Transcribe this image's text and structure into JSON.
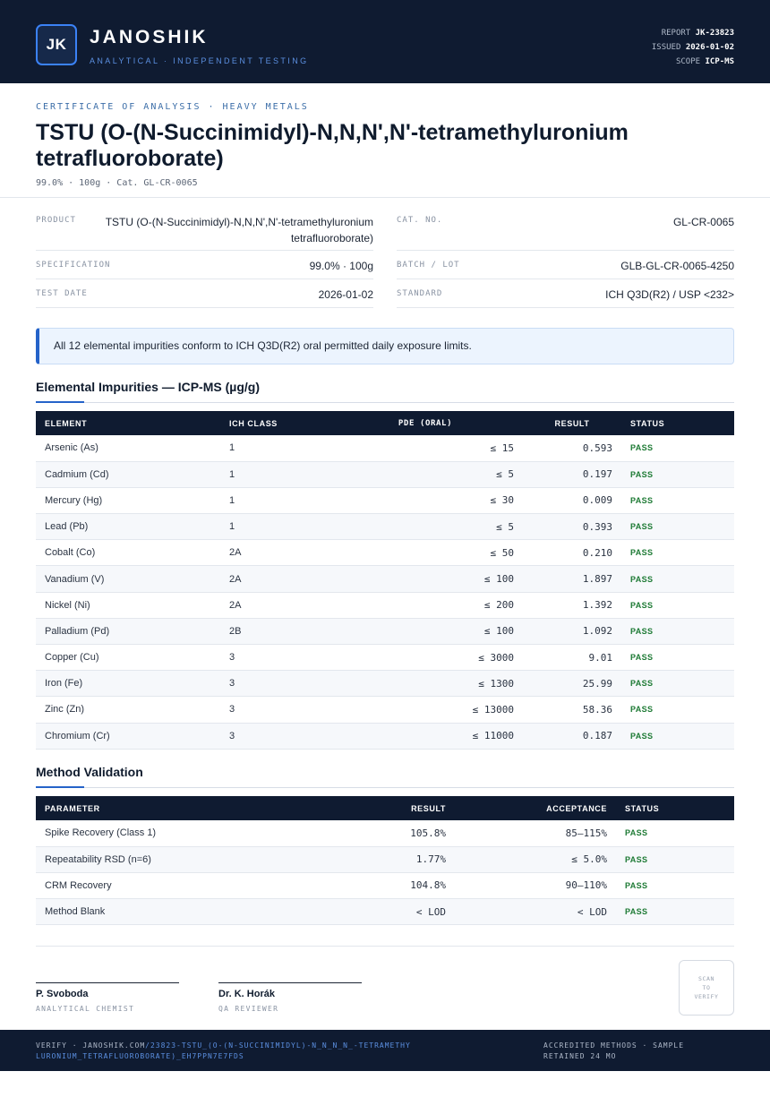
{
  "header": {
    "logo": "JK",
    "brand": "JANOSHIK",
    "tagline": "ANALYTICAL · INDEPENDENT TESTING",
    "report_label": "REPORT",
    "report_value": "JK-23823",
    "issued_label": "ISSUED",
    "issued_value": "2026-01-02",
    "scope_label": "SCOPE",
    "scope_value": "ICP-MS",
    "colors": {
      "navy": "#0f1b31",
      "accent": "#3b82f6",
      "pass": "#1d7a34"
    }
  },
  "title": {
    "eyebrow": "CERTIFICATE OF ANALYSIS · HEAVY METALS",
    "heading": "TSTU (O-(N-Succinimidyl)-N,N,N',N'-tetramethyluronium tetrafluoroborate)",
    "subline": "99.0% · 100g  ·  Cat. GL-CR-0065"
  },
  "info": {
    "product_label": "PRODUCT",
    "product_value_1": "TSTU (O-(N-Succinimidyl)-N,N,N',N'-tetramethyluronium",
    "product_value_2": "tetrafluoroborate)",
    "spec_label": "SPECIFICATION",
    "spec_value": "99.0% · 100g",
    "date_label": "TEST DATE",
    "date_value": "2026-01-02",
    "cat_label": "CAT. NO.",
    "cat_value": "GL-CR-0065",
    "batch_label": "BATCH / LOT",
    "batch_value": "GLB-GL-CR-0065-4250",
    "standard_label": "STANDARD",
    "standard_value": "ICH Q3D(R2) / USP <232>"
  },
  "notice": "All 12 elemental impurities conform to ICH Q3D(R2) oral permitted daily exposure limits.",
  "impurities": {
    "heading": "Elemental Impurities — ICP-MS (µg/g)",
    "columns": [
      "ELEMENT",
      "ICH CLASS",
      "PDE (ORAL)",
      "RESULT",
      "STATUS"
    ],
    "rows": [
      {
        "element": "Arsenic (As)",
        "class": "1",
        "pde": "≤ 15",
        "result": "0.593",
        "status": "PASS"
      },
      {
        "element": "Cadmium (Cd)",
        "class": "1",
        "pde": "≤ 5",
        "result": "0.197",
        "status": "PASS"
      },
      {
        "element": "Mercury (Hg)",
        "class": "1",
        "pde": "≤ 30",
        "result": "0.009",
        "status": "PASS"
      },
      {
        "element": "Lead (Pb)",
        "class": "1",
        "pde": "≤ 5",
        "result": "0.393",
        "status": "PASS"
      },
      {
        "element": "Cobalt (Co)",
        "class": "2A",
        "pde": "≤ 50",
        "result": "0.210",
        "status": "PASS"
      },
      {
        "element": "Vanadium (V)",
        "class": "2A",
        "pde": "≤ 100",
        "result": "1.897",
        "status": "PASS"
      },
      {
        "element": "Nickel (Ni)",
        "class": "2A",
        "pde": "≤ 200",
        "result": "1.392",
        "status": "PASS"
      },
      {
        "element": "Palladium (Pd)",
        "class": "2B",
        "pde": "≤ 100",
        "result": "1.092",
        "status": "PASS"
      },
      {
        "element": "Copper (Cu)",
        "class": "3",
        "pde": "≤ 3000",
        "result": "9.01",
        "status": "PASS"
      },
      {
        "element": "Iron (Fe)",
        "class": "3",
        "pde": "≤ 1300",
        "result": "25.99",
        "status": "PASS"
      },
      {
        "element": "Zinc (Zn)",
        "class": "3",
        "pde": "≤ 13000",
        "result": "58.36",
        "status": "PASS"
      },
      {
        "element": "Chromium (Cr)",
        "class": "3",
        "pde": "≤ 11000",
        "result": "0.187",
        "status": "PASS"
      }
    ]
  },
  "validation": {
    "heading": "Method Validation",
    "columns": [
      "PARAMETER",
      "RESULT",
      "ACCEPTANCE",
      "STATUS"
    ],
    "rows": [
      {
        "parameter": "Spike Recovery (Class 1)",
        "result": "105.8%",
        "acceptance": "85–115%",
        "status": "PASS"
      },
      {
        "parameter": "Repeatability RSD (n=6)",
        "result": "1.77%",
        "acceptance": "≤ 5.0%",
        "status": "PASS"
      },
      {
        "parameter": "CRM Recovery",
        "result": "104.8%",
        "acceptance": "90–110%",
        "status": "PASS"
      },
      {
        "parameter": "Method Blank",
        "result": "< LOD",
        "acceptance": "< LOD",
        "status": "PASS"
      }
    ]
  },
  "signatures": [
    {
      "name": "P. Svoboda",
      "role": "ANALYTICAL CHEMIST"
    },
    {
      "name": "Dr. K. Horák",
      "role": "QA REVIEWER"
    }
  ],
  "qr": {
    "line1": "SCAN",
    "line2": "TO",
    "line3": "VERIFY"
  },
  "footer": {
    "verify_prefix": "VERIFY · JANOSHIK.COM",
    "verify_link": "/23823-TSTU_(O-(N-SUCCINIMIDYL)-N_N_N_N_-TETRAMETHYLURONIUM_TETRAFLUOROBORATE)_EH7PPN7E7FDS",
    "right_1": "ACCREDITED METHODS · SAMPLE",
    "right_2": "RETAINED 24 MO"
  }
}
